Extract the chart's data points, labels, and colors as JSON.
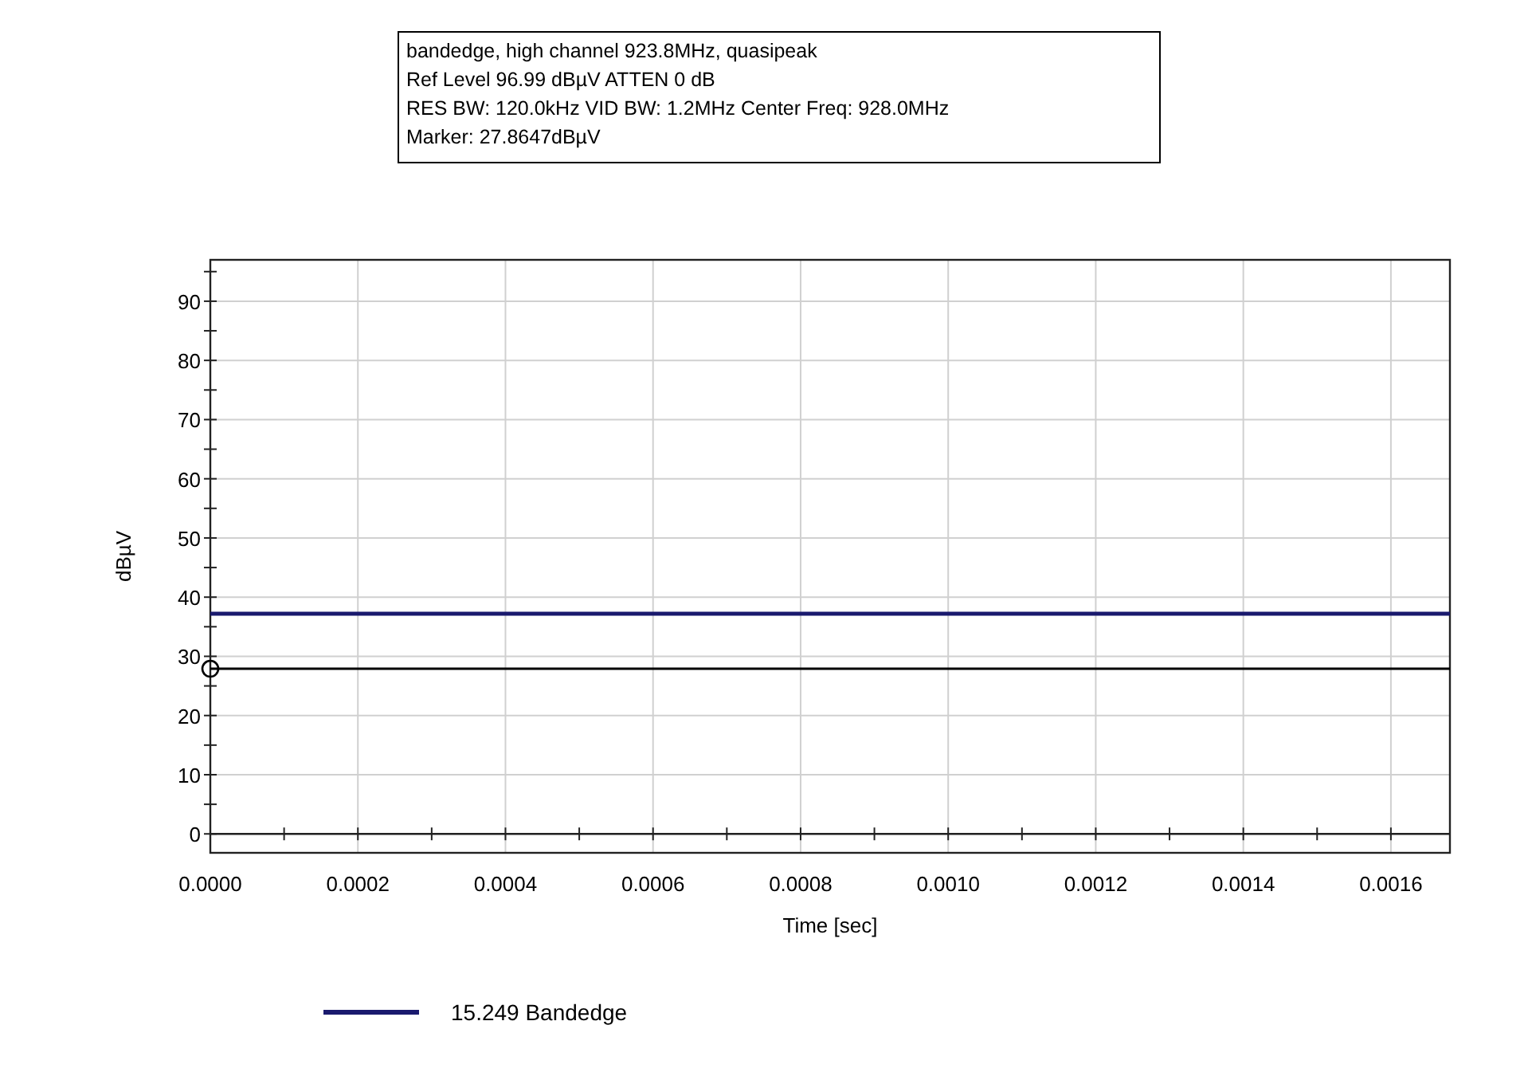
{
  "chart_data": {
    "type": "scatter",
    "xlabel": "Time [sec]",
    "ylabel": "dBµV",
    "annotations": [
      "bandedge, high channel 923.8MHz, quasipeak",
      "Ref Level 96.99 dBµV    ATTEN 0 dB",
      "RES BW: 120.0kHz  VID BW: 1.2MHz  Center Freq: 928.0MHz",
      "Marker:   27.8647dBµV"
    ],
    "xlim": [
      0,
      0.00168
    ],
    "ylim": [
      -3.2,
      96.99
    ],
    "xticks": [
      {
        "value": 0,
        "label": "0.0000"
      },
      {
        "value": 0.0001,
        "label": null
      },
      {
        "value": 0.0002,
        "label": "0.0002"
      },
      {
        "value": 0.0003,
        "label": null
      },
      {
        "value": 0.0004,
        "label": "0.0004"
      },
      {
        "value": 0.0005,
        "label": null
      },
      {
        "value": 0.0006,
        "label": "0.0006"
      },
      {
        "value": 0.0007,
        "label": null
      },
      {
        "value": 0.0008,
        "label": "0.0008"
      },
      {
        "value": 0.0009,
        "label": null
      },
      {
        "value": 0.001,
        "label": "0.0010"
      },
      {
        "value": 0.0011,
        "label": null
      },
      {
        "value": 0.0012,
        "label": "0.0012"
      },
      {
        "value": 0.0013,
        "label": null
      },
      {
        "value": 0.0014,
        "label": "0.0014"
      },
      {
        "value": 0.0015,
        "label": null
      },
      {
        "value": 0.0016,
        "label": "0.0016"
      }
    ],
    "yticks": [
      0,
      {
        "value": 5,
        "label": null
      },
      10,
      {
        "value": 15,
        "label": null
      },
      20,
      {
        "value": 25,
        "label": null
      },
      30,
      {
        "value": 35,
        "label": null
      },
      40,
      {
        "value": 45,
        "label": null
      },
      50,
      {
        "value": 55,
        "label": null
      },
      60,
      {
        "value": 65,
        "label": null
      },
      70,
      {
        "value": 75,
        "label": null
      },
      80,
      {
        "value": 85,
        "label": null
      },
      90,
      {
        "value": 95,
        "label": null
      }
    ],
    "grid": true,
    "legend": "bottom",
    "ref_lines": [
      {
        "axis": "y",
        "value": 37.2,
        "label": "15.249 Bandedge",
        "color": "#1a1a6e"
      },
      {
        "axis": "y",
        "value": 27.9,
        "color": "#000000"
      }
    ],
    "series": [
      {
        "marker": "circle",
        "color": "#000000",
        "x": [
          0
        ],
        "values": [
          27.9
        ]
      }
    ]
  }
}
